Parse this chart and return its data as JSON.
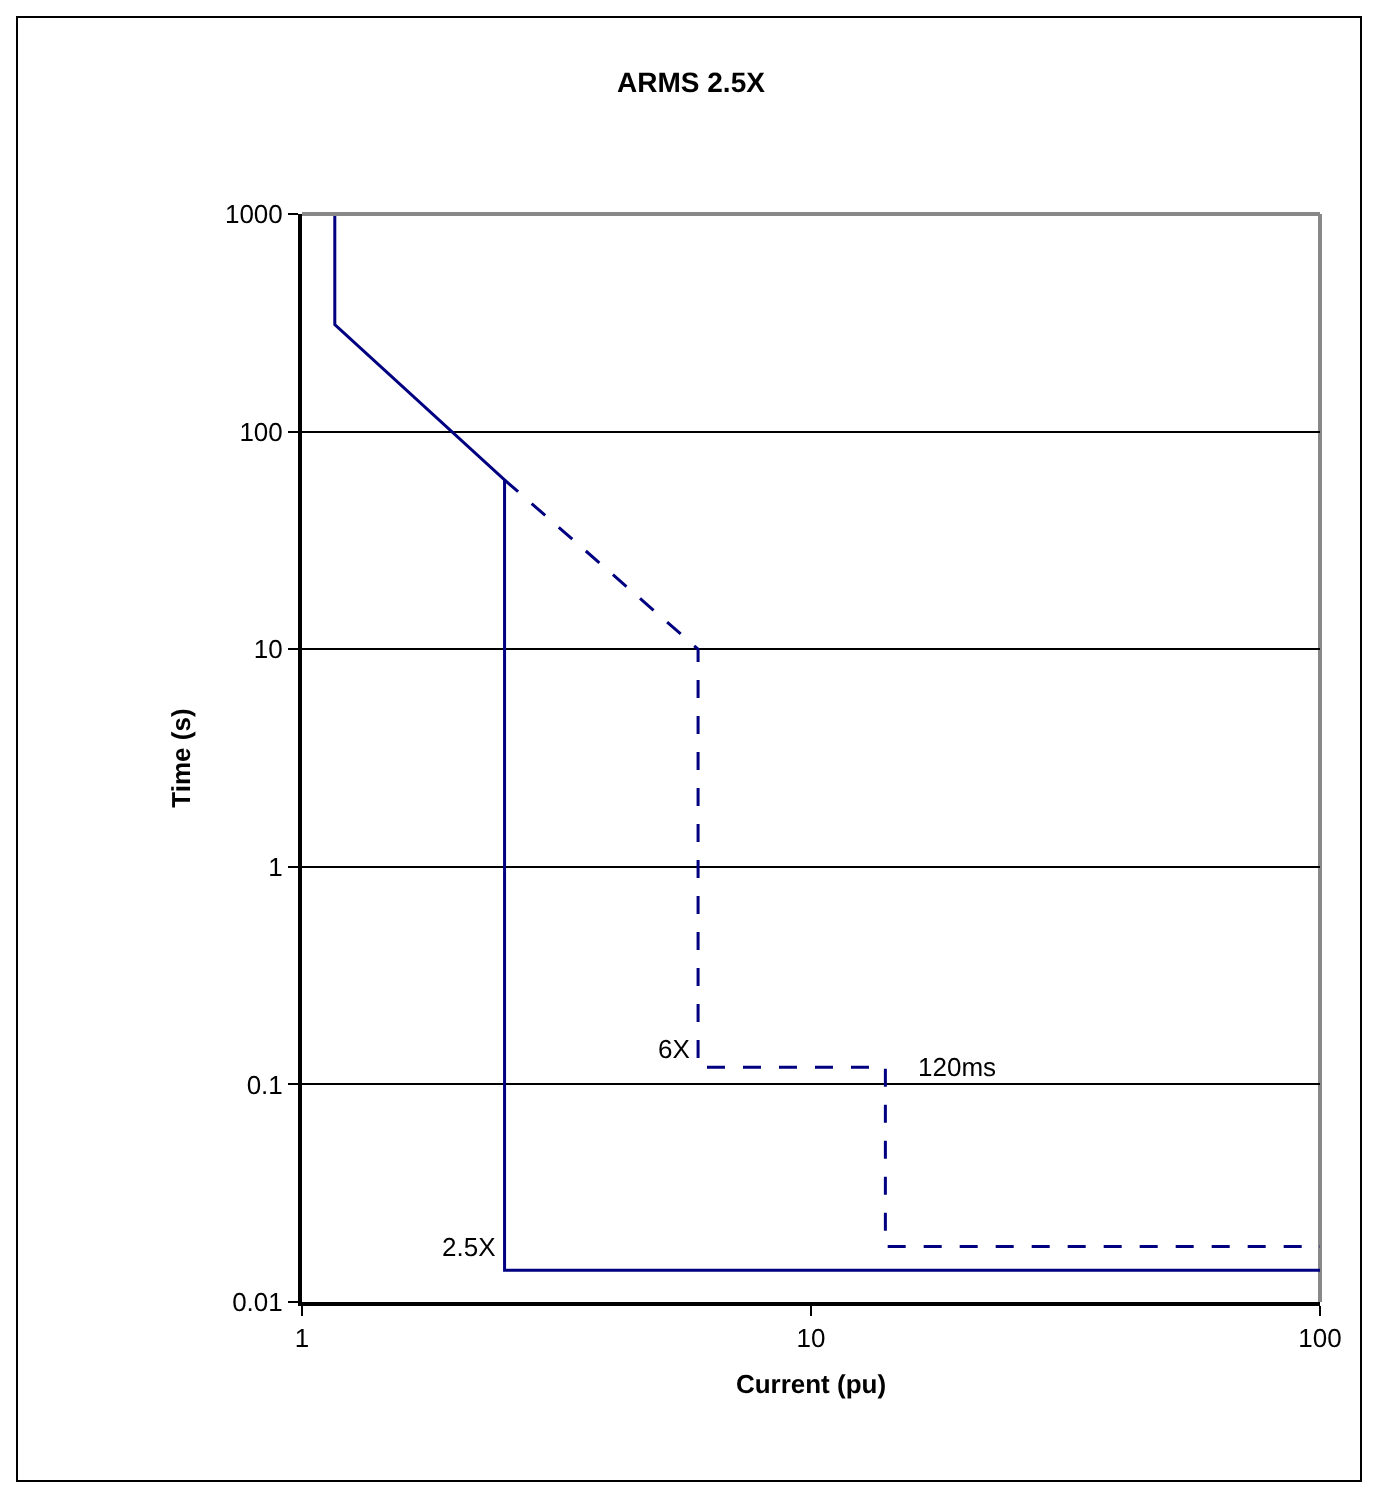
{
  "chart_data": {
    "type": "line",
    "title": "ARMS 2.5X",
    "xlabel": "Current (pu)",
    "ylabel": "Time (s)",
    "log": "xy",
    "grid": "y",
    "marker": "none",
    "xlim": [
      1,
      100
    ],
    "xticks": [
      1,
      10,
      100
    ],
    "ylim": [
      0.01,
      1000
    ],
    "yticks": [
      0.01,
      0.1,
      1,
      10,
      100,
      1000
    ],
    "series": [
      {
        "color": "#000080",
        "line_style": "solid",
        "x": [
          1.16,
          1.16,
          2.5,
          2.5,
          100
        ],
        "values": [
          1000,
          310,
          60,
          0.014,
          0.014
        ]
      },
      {
        "color": "#000080",
        "line_style": "dashed",
        "x": [
          2.5,
          6,
          6,
          14,
          14,
          100
        ],
        "values": [
          60,
          10,
          0.12,
          0.12,
          0.018,
          0.018
        ]
      }
    ],
    "annotations": [
      {
        "text": "6X",
        "x": 6,
        "y": 0.12
      },
      {
        "text": "120ms",
        "x": 14,
        "y": 0.12
      },
      {
        "text": "2.5X",
        "x": 2.5,
        "y": 0.014
      }
    ]
  }
}
